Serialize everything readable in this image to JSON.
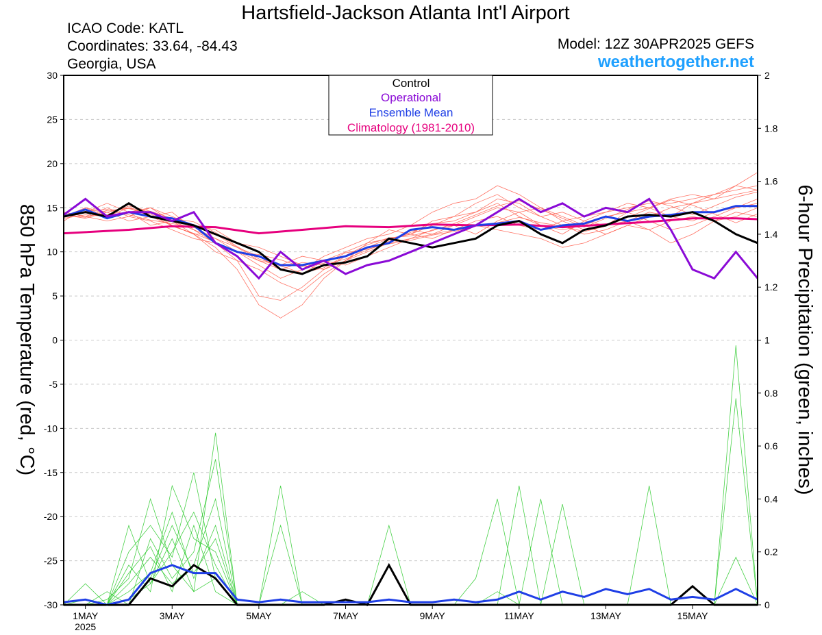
{
  "header": {
    "title": "Hartsfield-Jackson Atlanta Int'l Airport",
    "icao": "ICAO Code: KATL",
    "coordinates": "Coordinates: 33.64, -84.43",
    "region": "Georgia, USA",
    "model": "Model: 12Z 30APR2025 GEFS",
    "website": "weathertogether.net"
  },
  "legend": {
    "placement": "top-center",
    "entries": [
      {
        "label": "Control",
        "color": "#000000"
      },
      {
        "label": "Operational",
        "color": "#8a0ad6"
      },
      {
        "label": "Ensemble Mean",
        "color": "#1f3fe6"
      },
      {
        "label": "Climatology (1981-2010)",
        "color": "#e6007e"
      }
    ]
  },
  "chart_data": {
    "type": "line",
    "grid": "horizontal dashed",
    "left_axis": {
      "label": "850 hPa Temperature (red, °C)",
      "ylim": [
        -30,
        30
      ],
      "ticks": [
        "30",
        "25",
        "20",
        "15",
        "10",
        "5",
        "0",
        "-5",
        "-10",
        "-15",
        "-20",
        "-25",
        "-30"
      ]
    },
    "right_axis": {
      "label": "6-hour Precipitation (green, inches)",
      "ylim": [
        0,
        2
      ],
      "ticks": [
        "2",
        "1.8",
        "1.6",
        "1.4",
        "1.2",
        "1",
        "0.8",
        "0.6",
        "0.4",
        "0.2",
        "0"
      ]
    },
    "x_axis": {
      "xlim_days": [
        0.5,
        16.5
      ],
      "ticks": [
        {
          "day": 1,
          "label": "1MAY",
          "sub": "2025"
        },
        {
          "day": 3,
          "label": "3MAY"
        },
        {
          "day": 5,
          "label": "5MAY"
        },
        {
          "day": 7,
          "label": "7MAY"
        },
        {
          "day": 9,
          "label": "9MAY"
        },
        {
          "day": 11,
          "label": "11MAY"
        },
        {
          "day": 13,
          "label": "13MAY"
        },
        {
          "day": 15,
          "label": "15MAY"
        }
      ]
    },
    "climatology": {
      "name": "Climatology (1981-2010)",
      "color": "#e6007e",
      "x": [
        0.5,
        2,
        3,
        4,
        5,
        6,
        7,
        8,
        9,
        10,
        11,
        12,
        13,
        14,
        15,
        16,
        16.5
      ],
      "y": [
        12.1,
        12.5,
        12.9,
        12.8,
        12.1,
        12.5,
        12.9,
        12.8,
        13.1,
        13.0,
        13.1,
        12.8,
        13.1,
        13.4,
        13.8,
        13.8,
        13.7
      ]
    },
    "temperature_series": [
      {
        "name": "Control",
        "color": "#000000",
        "x": [
          0.5,
          1,
          1.5,
          2,
          2.5,
          3,
          3.5,
          4,
          4.5,
          5,
          5.5,
          6,
          6.5,
          7,
          7.5,
          8,
          8.5,
          9,
          9.5,
          10,
          10.5,
          11,
          11.5,
          12,
          12.5,
          13,
          13.5,
          14,
          14.5,
          15,
          15.5,
          16,
          16.5
        ],
        "y": [
          14.0,
          14.5,
          14.0,
          15.5,
          14.0,
          13.5,
          13.0,
          12.0,
          11.0,
          10.0,
          8.0,
          7.5,
          8.5,
          8.8,
          9.5,
          11.5,
          11.0,
          10.5,
          11.0,
          11.5,
          13.0,
          13.5,
          12.0,
          11.0,
          12.5,
          13.0,
          14.0,
          14.2,
          14.0,
          14.5,
          13.5,
          12.0,
          11.0
        ]
      },
      {
        "name": "Operational",
        "color": "#8a0ad6",
        "x": [
          0.5,
          1,
          1.5,
          2,
          2.5,
          3,
          3.5,
          4,
          4.5,
          5,
          5.5,
          6,
          6.5,
          7,
          7.5,
          8,
          8.5,
          9,
          9.5,
          10,
          10.5,
          11,
          11.5,
          12,
          12.5,
          13,
          13.5,
          14,
          14.5,
          15,
          15.5,
          16,
          16.5
        ],
        "y": [
          14.2,
          16.0,
          14.0,
          14.5,
          14.5,
          13.5,
          14.5,
          11.0,
          9.5,
          7.0,
          10.0,
          8.0,
          9.0,
          7.5,
          8.5,
          9.0,
          10.0,
          11.0,
          12.0,
          13.0,
          14.5,
          16.0,
          14.5,
          15.5,
          14.0,
          15.0,
          14.5,
          16.0,
          12.5,
          8.0,
          7.0,
          10.0,
          7.0
        ]
      },
      {
        "name": "Ensemble Mean",
        "color": "#1f3fe6",
        "x": [
          0.5,
          1,
          1.5,
          2,
          2.5,
          3,
          3.5,
          4,
          4.5,
          5,
          5.5,
          6,
          6.5,
          7,
          7.5,
          8,
          8.5,
          9,
          9.5,
          10,
          10.5,
          11,
          11.5,
          12,
          12.5,
          13,
          13.5,
          14,
          14.5,
          15,
          15.5,
          16,
          16.5
        ],
        "y": [
          14.0,
          14.8,
          13.8,
          14.5,
          14.0,
          13.8,
          13.0,
          11.0,
          10.0,
          9.5,
          8.5,
          8.5,
          9.0,
          9.5,
          10.5,
          11.0,
          12.5,
          12.8,
          12.5,
          13.0,
          13.2,
          13.5,
          12.5,
          13.0,
          13.2,
          14.0,
          13.5,
          14.0,
          14.2,
          14.5,
          14.5,
          15.2,
          15.2
        ]
      }
    ],
    "precipitation_series": [
      {
        "name": "Control",
        "color": "#000000",
        "x": [
          0.5,
          1,
          1.5,
          2,
          2.5,
          3,
          3.5,
          4,
          4.5,
          5,
          5.5,
          6,
          6.5,
          7,
          7.5,
          8,
          8.5,
          9,
          9.5,
          10,
          10.5,
          11,
          11.5,
          12,
          12.5,
          13,
          13.5,
          14,
          14.5,
          15,
          15.5,
          16,
          16.5
        ],
        "y": [
          0.0,
          0.0,
          0.0,
          0.0,
          0.1,
          0.07,
          0.15,
          0.1,
          0.0,
          0.0,
          0.0,
          0.0,
          0.0,
          0.02,
          0.0,
          0.15,
          0.0,
          0.0,
          0.0,
          0.0,
          0.0,
          0.0,
          0.0,
          0.0,
          0.0,
          0.0,
          0.0,
          0.0,
          0.0,
          0.07,
          0.0,
          0.0,
          0.0
        ]
      },
      {
        "name": "Ensemble Mean",
        "color": "#1f3fe6",
        "x": [
          0.5,
          1,
          1.5,
          2,
          2.5,
          3,
          3.5,
          4,
          4.5,
          5,
          5.5,
          6,
          6.5,
          7,
          7.5,
          8,
          8.5,
          9,
          9.5,
          10,
          10.5,
          11,
          11.5,
          12,
          12.5,
          13,
          13.5,
          14,
          14.5,
          15,
          15.5,
          16,
          16.5
        ],
        "y": [
          0.01,
          0.02,
          0.0,
          0.02,
          0.12,
          0.15,
          0.12,
          0.12,
          0.02,
          0.01,
          0.02,
          0.01,
          0.01,
          0.01,
          0.01,
          0.02,
          0.01,
          0.01,
          0.02,
          0.01,
          0.02,
          0.05,
          0.02,
          0.05,
          0.03,
          0.06,
          0.04,
          0.06,
          0.02,
          0.03,
          0.02,
          0.06,
          0.02
        ]
      }
    ],
    "ensemble_members": {
      "temperature_color": "#ff5a4a",
      "precipitation_color": "#33cc33",
      "temperature_members": [
        [
          14.5,
          14.0,
          15.0,
          14.0,
          13.5,
          12.5,
          11.5,
          11.0,
          9.0,
          5.0,
          4.5,
          6.0,
          8.0,
          9.5,
          10.5,
          11.5,
          12.0,
          11.5,
          12.5,
          13.5,
          14.0,
          13.0,
          12.5,
          13.5,
          14.0,
          14.5,
          15.0,
          15.5,
          15.5,
          16.0,
          16.5,
          17.5,
          17.0
        ],
        [
          13.5,
          15.0,
          14.0,
          15.0,
          14.5,
          13.0,
          12.0,
          10.5,
          8.0,
          4.0,
          2.5,
          4.0,
          7.0,
          9.0,
          11.0,
          12.5,
          12.0,
          13.0,
          14.0,
          14.5,
          16.0,
          15.5,
          14.0,
          14.5,
          13.5,
          13.0,
          14.5,
          15.0,
          14.0,
          15.5,
          16.0,
          17.5,
          19.0
        ],
        [
          14.0,
          14.5,
          15.5,
          14.5,
          13.0,
          13.5,
          12.5,
          11.5,
          10.5,
          9.0,
          8.5,
          9.5,
          9.0,
          8.5,
          9.5,
          10.5,
          11.5,
          12.5,
          13.0,
          12.0,
          13.5,
          14.5,
          15.0,
          13.5,
          12.5,
          13.0,
          13.5,
          12.5,
          11.0,
          12.0,
          13.5,
          14.5,
          14.0
        ],
        [
          14.2,
          13.8,
          14.5,
          15.0,
          14.0,
          13.0,
          12.0,
          12.0,
          10.5,
          9.5,
          8.0,
          7.5,
          9.0,
          10.0,
          11.0,
          11.5,
          12.0,
          13.5,
          14.0,
          15.5,
          16.5,
          15.0,
          14.0,
          13.0,
          12.0,
          12.5,
          13.5,
          14.5,
          14.0,
          13.5,
          14.5,
          15.0,
          16.0
        ],
        [
          13.8,
          14.2,
          14.0,
          14.5,
          15.0,
          14.0,
          13.0,
          12.5,
          11.0,
          10.5,
          9.5,
          8.5,
          8.0,
          9.0,
          10.5,
          11.0,
          12.5,
          12.0,
          13.0,
          14.0,
          15.0,
          14.5,
          13.0,
          12.0,
          13.5,
          14.5,
          15.5,
          15.0,
          16.0,
          16.5,
          16.0,
          16.5,
          17.0
        ],
        [
          14.0,
          15.0,
          14.5,
          13.5,
          14.0,
          14.5,
          12.5,
          11.0,
          10.0,
          8.5,
          7.0,
          8.0,
          9.5,
          10.5,
          11.5,
          12.0,
          13.0,
          14.5,
          15.5,
          16.0,
          17.5,
          16.5,
          15.0,
          14.0,
          13.0,
          12.0,
          13.0,
          14.0,
          15.0,
          15.5,
          16.5,
          17.0,
          17.5
        ],
        [
          14.5,
          14.0,
          13.5,
          14.0,
          15.0,
          13.5,
          12.0,
          10.0,
          9.0,
          8.0,
          6.5,
          5.5,
          7.5,
          9.0,
          10.0,
          11.0,
          11.5,
          12.0,
          12.5,
          13.0,
          12.5,
          12.0,
          11.5,
          10.5,
          11.0,
          12.0,
          13.0,
          12.5,
          13.5,
          14.0,
          13.5,
          14.0,
          15.0
        ],
        [
          13.9,
          14.6,
          14.8,
          14.2,
          13.6,
          13.2,
          12.8,
          11.5,
          10.0,
          9.0,
          8.0,
          8.8,
          8.5,
          9.2,
          10.2,
          11.2,
          12.2,
          13.2,
          13.5,
          14.5,
          15.5,
          14.0,
          13.0,
          12.5,
          13.0,
          14.0,
          14.5,
          13.5,
          12.5,
          13.0,
          14.0,
          15.0,
          15.5
        ],
        [
          14.1,
          14.4,
          14.2,
          15.2,
          14.6,
          13.8,
          13.4,
          12.2,
          10.6,
          9.2,
          8.4,
          7.6,
          8.2,
          9.6,
          10.8,
          11.6,
          11.8,
          12.4,
          13.2,
          14.2,
          15.2,
          15.8,
          14.8,
          13.8,
          12.8,
          13.8,
          14.8,
          15.8,
          15.2,
          14.2,
          15.2,
          16.2,
          16.8
        ],
        [
          14.3,
          13.9,
          14.7,
          14.9,
          14.3,
          12.9,
          12.1,
          11.1,
          9.9,
          9.7,
          9.1,
          8.3,
          8.7,
          9.9,
          10.3,
          10.9,
          11.3,
          11.9,
          12.3,
          12.9,
          13.3,
          13.9,
          13.3,
          12.9,
          12.3,
          12.9,
          13.9,
          14.9,
          15.9,
          15.3,
          14.3,
          13.3,
          14.3
        ]
      ],
      "precipitation_members": [
        [
          0.0,
          0.02,
          0.0,
          0.3,
          0.08,
          0.2,
          0.35,
          0.15,
          0.0,
          0.0,
          0.0,
          0.0,
          0.0,
          0.0,
          0.0,
          0.3,
          0.0,
          0.0,
          0.0,
          0.0,
          0.05,
          0.0,
          0.0,
          0.0,
          0.0,
          0.0,
          0.0,
          0.0,
          0.0,
          0.0,
          0.0,
          0.98,
          0.0
        ],
        [
          0.0,
          0.0,
          0.02,
          0.1,
          0.4,
          0.15,
          0.05,
          0.65,
          0.0,
          0.0,
          0.0,
          0.05,
          0.0,
          0.0,
          0.0,
          0.0,
          0.0,
          0.0,
          0.0,
          0.0,
          0.0,
          0.45,
          0.0,
          0.0,
          0.0,
          0.0,
          0.0,
          0.0,
          0.0,
          0.0,
          0.0,
          0.18,
          0.0
        ],
        [
          0.0,
          0.0,
          0.0,
          0.2,
          0.3,
          0.18,
          0.5,
          0.1,
          0.0,
          0.0,
          0.45,
          0.0,
          0.0,
          0.0,
          0.0,
          0.0,
          0.0,
          0.0,
          0.0,
          0.1,
          0.4,
          0.0,
          0.0,
          0.0,
          0.0,
          0.0,
          0.0,
          0.0,
          0.0,
          0.0,
          0.0,
          0.0,
          0.0
        ],
        [
          0.0,
          0.0,
          0.0,
          0.05,
          0.12,
          0.35,
          0.1,
          0.3,
          0.0,
          0.0,
          0.0,
          0.0,
          0.0,
          0.0,
          0.0,
          0.0,
          0.0,
          0.0,
          0.0,
          0.0,
          0.0,
          0.0,
          0.4,
          0.0,
          0.0,
          0.0,
          0.0,
          0.0,
          0.0,
          0.0,
          0.0,
          0.0,
          0.0
        ],
        [
          0.0,
          0.08,
          0.0,
          0.0,
          0.25,
          0.1,
          0.2,
          0.55,
          0.0,
          0.0,
          0.0,
          0.0,
          0.0,
          0.0,
          0.0,
          0.0,
          0.0,
          0.0,
          0.0,
          0.0,
          0.0,
          0.0,
          0.0,
          0.0,
          0.0,
          0.0,
          0.0,
          0.45,
          0.0,
          0.0,
          0.0,
          0.0,
          0.0
        ],
        [
          0.0,
          0.0,
          0.0,
          0.15,
          0.05,
          0.45,
          0.25,
          0.2,
          0.0,
          0.0,
          0.0,
          0.0,
          0.0,
          0.0,
          0.0,
          0.0,
          0.0,
          0.0,
          0.0,
          0.0,
          0.0,
          0.0,
          0.0,
          0.0,
          0.0,
          0.0,
          0.0,
          0.0,
          0.0,
          0.0,
          0.0,
          0.78,
          0.0
        ],
        [
          0.0,
          0.0,
          0.0,
          0.08,
          0.18,
          0.08,
          0.15,
          0.4,
          0.0,
          0.0,
          0.3,
          0.0,
          0.0,
          0.0,
          0.0,
          0.0,
          0.0,
          0.0,
          0.0,
          0.0,
          0.0,
          0.0,
          0.0,
          0.0,
          0.0,
          0.0,
          0.0,
          0.0,
          0.0,
          0.0,
          0.0,
          0.0,
          0.0
        ],
        [
          0.0,
          0.0,
          0.0,
          0.02,
          0.08,
          0.25,
          0.05,
          0.1,
          0.0,
          0.0,
          0.0,
          0.0,
          0.0,
          0.0,
          0.0,
          0.0,
          0.0,
          0.0,
          0.0,
          0.0,
          0.0,
          0.0,
          0.0,
          0.38,
          0.0,
          0.0,
          0.0,
          0.0,
          0.0,
          0.0,
          0.0,
          0.0,
          0.0
        ],
        [
          0.0,
          0.0,
          0.0,
          0.12,
          0.22,
          0.05,
          0.3,
          0.05,
          0.0,
          0.0,
          0.0,
          0.0,
          0.0,
          0.0,
          0.0,
          0.0,
          0.0,
          0.0,
          0.0,
          0.0,
          0.0,
          0.0,
          0.0,
          0.0,
          0.0,
          0.0,
          0.0,
          0.0,
          0.0,
          0.0,
          0.0,
          0.0,
          0.0
        ],
        [
          0.0,
          0.0,
          0.05,
          0.0,
          0.1,
          0.3,
          0.12,
          0.25,
          0.0,
          0.0,
          0.0,
          0.0,
          0.0,
          0.0,
          0.0,
          0.0,
          0.0,
          0.0,
          0.0,
          0.0,
          0.0,
          0.0,
          0.0,
          0.0,
          0.0,
          0.0,
          0.0,
          0.0,
          0.0,
          0.0,
          0.0,
          0.0,
          0.0
        ]
      ]
    }
  }
}
